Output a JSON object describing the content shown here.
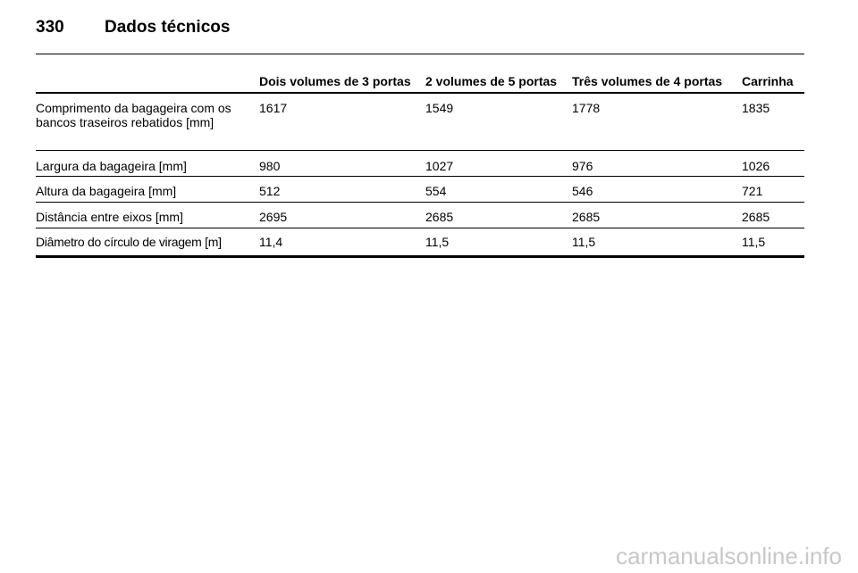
{
  "header": {
    "page_number": "330",
    "title": "Dados técnicos"
  },
  "table": {
    "columns": [
      "Dois volumes de 3 portas",
      "2 volumes de 5 portas",
      "Três volumes de 4 portas",
      "Carrinha"
    ],
    "rows": [
      [
        "Comprimento da bagageira com os bancos traseiros rebatidos [mm]",
        "1617",
        "1549",
        "1778",
        "1835"
      ],
      [
        "Largura da bagageira [mm]",
        "980",
        "1027",
        "976",
        "1026"
      ],
      [
        "Altura da bagageira [mm]",
        "512",
        "554",
        "546",
        "721"
      ],
      [
        "Distância entre eixos [mm]",
        "2695",
        "2685",
        "2685",
        "2685"
      ],
      [
        "Diâmetro do círculo de viragem [m]",
        "11,4",
        "11,5",
        "11,5",
        "11,5"
      ]
    ]
  },
  "footer": {
    "watermark": "carmanualsonline.info"
  }
}
